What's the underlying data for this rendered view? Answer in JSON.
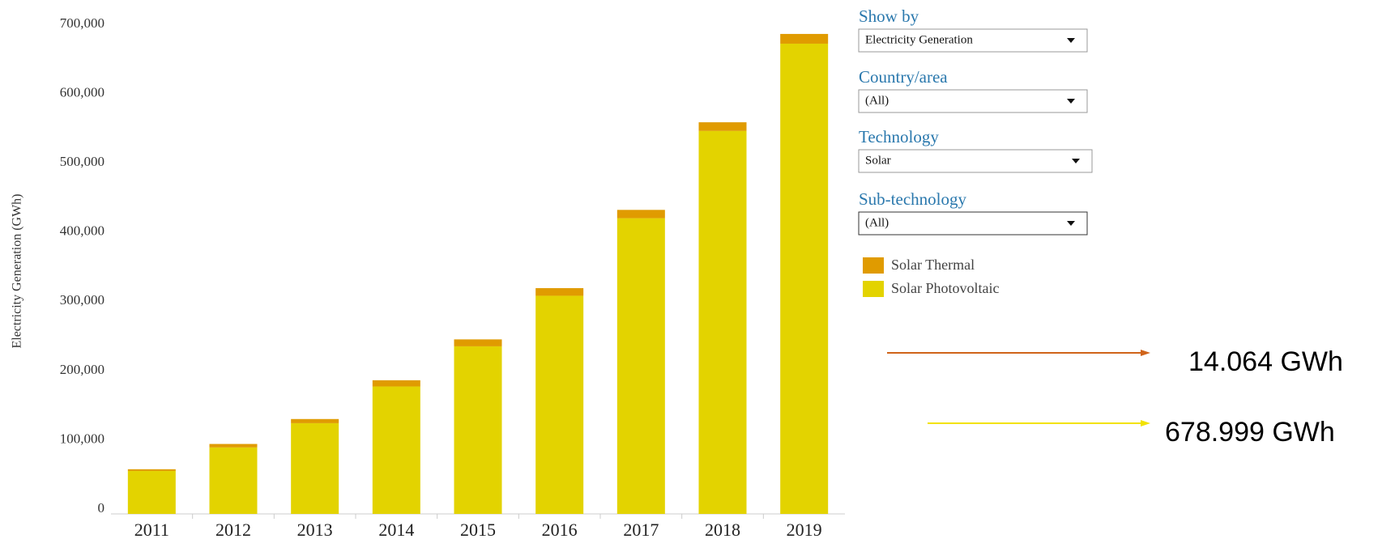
{
  "chart_data": {
    "type": "bar",
    "stacked": true,
    "y_label": "Electricity Generation (GWh)",
    "categories": [
      "2011",
      "2012",
      "2013",
      "2014",
      "2015",
      "2016",
      "2017",
      "2018",
      "2019"
    ],
    "series": [
      {
        "name": "Solar Thermal",
        "color": "#e09b00",
        "values": [
          2500,
          5000,
          6000,
          9000,
          10000,
          11000,
          12000,
          12500,
          14064
        ]
      },
      {
        "name": "Solar Photovoltaic",
        "color": "#e3d300",
        "values": [
          62000,
          96000,
          131000,
          184000,
          242000,
          315000,
          427000,
          553000,
          678999
        ]
      }
    ],
    "ylim": [
      0,
      700000
    ],
    "yticks": [
      0,
      {
        "value": 100000,
        "label": "100,000"
      },
      {
        "value": 200000,
        "label": "200,000"
      },
      {
        "value": 300000,
        "label": "300,000"
      },
      {
        "value": 400000,
        "label": "400,000"
      },
      {
        "value": 500000,
        "label": "500,000"
      },
      {
        "value": 600000,
        "label": "600,000"
      },
      {
        "value": 700000,
        "label": "700,000"
      }
    ],
    "grid": false,
    "annotations": [
      "14.064 GWh",
      "678.999 GWh"
    ]
  },
  "controls": [
    {
      "label": "Show by",
      "value": "Electricity Generation"
    },
    {
      "label": "Country/area",
      "value": "(All)"
    },
    {
      "label": "Technology",
      "value": "Solar"
    },
    {
      "label": "Sub-technology",
      "value": "(All)"
    }
  ]
}
